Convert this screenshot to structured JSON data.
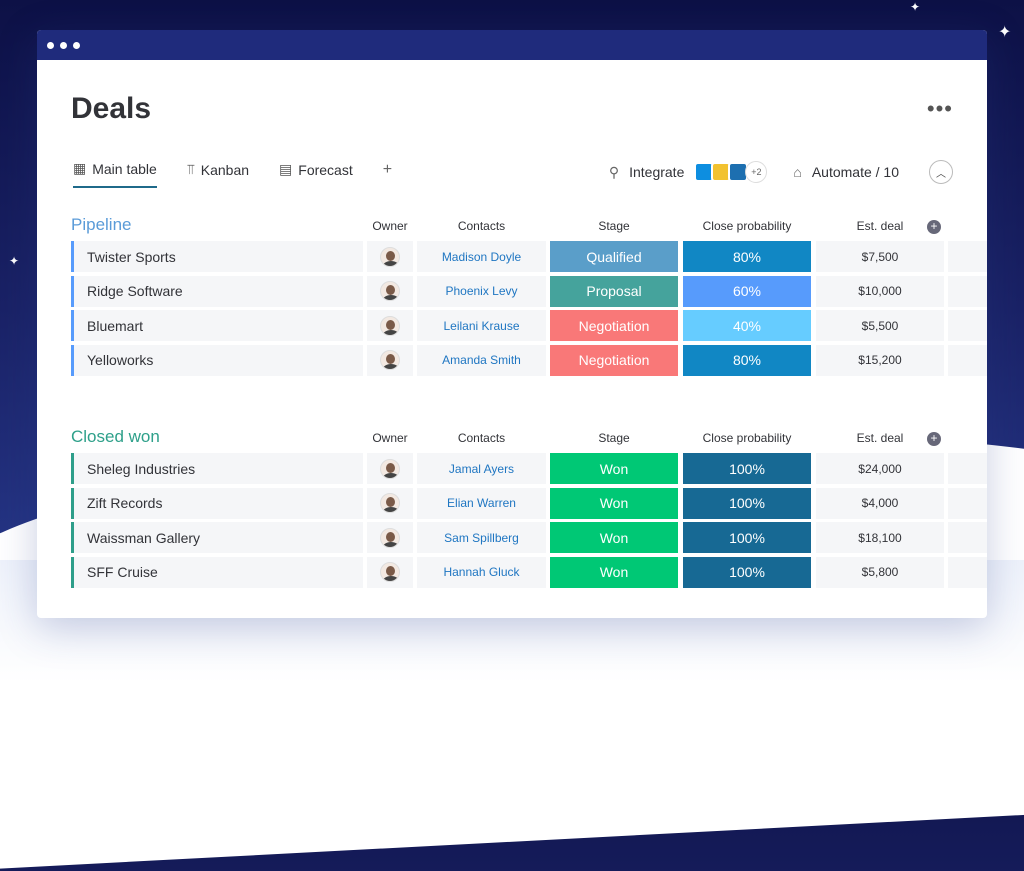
{
  "window": {
    "title": "Deals",
    "more": "•••"
  },
  "tabs": [
    {
      "label": "Main table",
      "icon": "table-icon"
    },
    {
      "label": "Kanban",
      "icon": "kanban-icon"
    },
    {
      "label": "Forecast",
      "icon": "chart-icon"
    }
  ],
  "add_tab": "+",
  "toolbar": {
    "integrate": "Integrate",
    "integrations_extra": "+2",
    "automate": "Automate / 10"
  },
  "columns": [
    "Owner",
    "Contacts",
    "Stage",
    "Close probability",
    "Est. deal"
  ],
  "colors": {
    "Qualified": "#5a9ec9",
    "Proposal": "#45a39c",
    "Negotiation": "#f97878",
    "Won": "#00c875",
    "80%": "#1187c4",
    "60%": "#579bfc",
    "40%": "#66ccff",
    "100%": "#176994"
  },
  "groups": [
    {
      "title": "Pipeline",
      "color": "#579bfc",
      "title_color": "#5a9bd8",
      "rows": [
        {
          "name": "Twister Sports",
          "contact": "Madison Doyle",
          "stage": "Qualified",
          "probability": "80%",
          "est": "$7,500"
        },
        {
          "name": "Ridge Software",
          "contact": "Phoenix Levy",
          "stage": "Proposal",
          "probability": "60%",
          "est": "$10,000"
        },
        {
          "name": "Bluemart",
          "contact": "Leilani Krause",
          "stage": "Negotiation",
          "probability": "40%",
          "est": "$5,500"
        },
        {
          "name": "Yelloworks",
          "contact": "Amanda Smith",
          "stage": "Negotiation",
          "probability": "80%",
          "est": "$15,200"
        }
      ]
    },
    {
      "title": "Closed won",
      "color": "#2e9e8a",
      "title_color": "#2ea08a",
      "rows": [
        {
          "name": "Sheleg Industries",
          "contact": "Jamal Ayers",
          "stage": "Won",
          "probability": "100%",
          "est": "$24,000"
        },
        {
          "name": "Zift Records",
          "contact": "Elian Warren",
          "stage": "Won",
          "probability": "100%",
          "est": "$4,000"
        },
        {
          "name": "Waissman Gallery",
          "contact": "Sam Spillberg",
          "stage": "Won",
          "probability": "100%",
          "est": "$18,100"
        },
        {
          "name": "SFF Cruise",
          "contact": "Hannah Gluck",
          "stage": "Won",
          "probability": "100%",
          "est": "$5,800"
        }
      ]
    }
  ]
}
